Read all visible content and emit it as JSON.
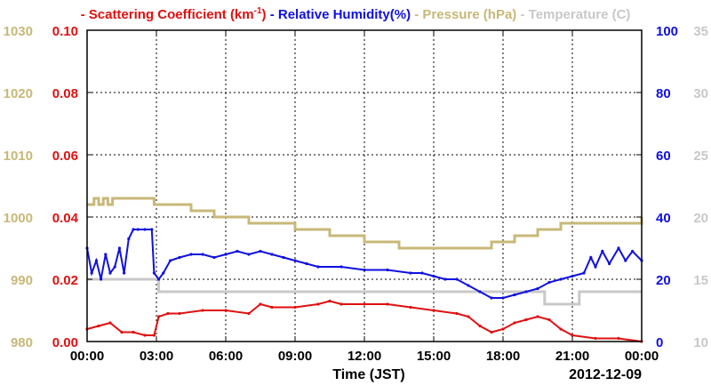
{
  "chart_data": {
    "type": "line",
    "date_label": "2012-12-09",
    "xlabel": "Time (JST)",
    "x_range_hours": [
      0,
      24
    ],
    "x_ticks": [
      "00:00",
      "03:00",
      "06:00",
      "09:00",
      "12:00",
      "15:00",
      "18:00",
      "21:00",
      "00:00"
    ],
    "grid": true,
    "legend_placement": "top",
    "axes": {
      "pressure": {
        "side": "left-outer",
        "range": [
          980,
          1030
        ],
        "ticks": [
          "980",
          "990",
          "1000",
          "1010",
          "1020",
          "1030"
        ],
        "color": "#c8b878"
      },
      "scattering": {
        "side": "left-inner",
        "range": [
          0,
          0.1
        ],
        "ticks": [
          "0.00",
          "0.02",
          "0.04",
          "0.06",
          "0.08",
          "0.10"
        ],
        "color": "#e01010"
      },
      "humidity": {
        "side": "right-inner",
        "range": [
          0,
          100
        ],
        "ticks": [
          "0",
          "20",
          "40",
          "60",
          "80",
          "100"
        ],
        "color": "#1010e0"
      },
      "temperature": {
        "side": "right-outer",
        "range": [
          10,
          35
        ],
        "ticks": [
          "10",
          "15",
          "20",
          "25",
          "30",
          "35"
        ],
        "color": "#c8c8c8"
      }
    },
    "legend": {
      "scattering": {
        "text": "Scattering Coefficient (km",
        "sup": "-1",
        "close": ")"
      },
      "humidity": "Relative Humidity(%)",
      "pressure": "Pressure (hPa)",
      "temperature": "Temperature (C)"
    },
    "series": [
      {
        "name": "Scattering Coefficient (km-1)",
        "key": "scattering",
        "axis": "scattering",
        "color": "#e01010",
        "step": false,
        "x": [
          0,
          0.5,
          1,
          1.5,
          2,
          2.5,
          2.9,
          3.1,
          3.5,
          4,
          5,
          6,
          7,
          7.5,
          8,
          9,
          10,
          10.5,
          11,
          12,
          13,
          14,
          15,
          16,
          16.5,
          17,
          17.5,
          18,
          18.5,
          19,
          19.5,
          20,
          20.5,
          21,
          22,
          23,
          24
        ],
        "y": [
          0.004,
          0.005,
          0.006,
          0.003,
          0.003,
          0.002,
          0.002,
          0.008,
          0.009,
          0.009,
          0.01,
          0.01,
          0.009,
          0.012,
          0.011,
          0.011,
          0.012,
          0.013,
          0.012,
          0.012,
          0.012,
          0.011,
          0.01,
          0.009,
          0.008,
          0.005,
          0.003,
          0.004,
          0.006,
          0.007,
          0.008,
          0.007,
          0.004,
          0.002,
          0.001,
          0.001,
          0.0
        ]
      },
      {
        "name": "Relative Humidity(%)",
        "key": "humidity",
        "axis": "humidity",
        "color": "#1010e0",
        "step": false,
        "x": [
          0,
          0.2,
          0.4,
          0.6,
          0.8,
          1,
          1.2,
          1.4,
          1.6,
          1.8,
          2,
          2.2,
          2.5,
          2.8,
          2.9,
          3.1,
          3.3,
          3.6,
          4,
          4.5,
          5,
          5.5,
          6,
          6.5,
          7,
          7.5,
          8,
          8.5,
          9,
          9.5,
          10,
          11,
          12,
          13,
          14,
          14.5,
          15,
          15.5,
          16,
          16.5,
          17,
          17.5,
          18,
          18.5,
          19,
          19.5,
          20,
          20.5,
          21,
          21.5,
          21.8,
          22,
          22.3,
          22.6,
          23,
          23.3,
          23.6,
          24
        ],
        "y": [
          30,
          22,
          26,
          20,
          28,
          22,
          24,
          30,
          22,
          33,
          36,
          36,
          36,
          36,
          22,
          20,
          22,
          26,
          27,
          28,
          28,
          27,
          28,
          29,
          28,
          29,
          28,
          27,
          26,
          25,
          24,
          24,
          23,
          23,
          22,
          22,
          21,
          20,
          20,
          18,
          16,
          14,
          14,
          15,
          16,
          17,
          19,
          20,
          21,
          22,
          27,
          24,
          29,
          25,
          30,
          26,
          29,
          26
        ]
      },
      {
        "name": "Pressure (hPa)",
        "key": "pressure",
        "axis": "pressure",
        "color": "#c8b878",
        "step": true,
        "x": [
          0,
          0.3,
          0.5,
          0.7,
          0.9,
          1.1,
          2.9,
          4.5,
          5.5,
          7,
          9,
          10.5,
          12,
          13.5,
          16,
          17.5,
          18.5,
          19.5,
          20.5,
          24
        ],
        "y": [
          1002,
          1003,
          1002,
          1003,
          1002,
          1003,
          1002,
          1001,
          1000,
          999,
          998,
          997,
          996,
          995,
          995,
          996,
          997,
          998,
          999,
          1000
        ]
      },
      {
        "name": "Temperature (C)",
        "key": "temperature",
        "axis": "temperature",
        "color": "#c8c8c8",
        "step": true,
        "x": [
          0,
          3.1,
          16.5,
          19.8,
          21.3,
          24
        ],
        "y": [
          15,
          14,
          14,
          13,
          14,
          14
        ]
      }
    ]
  }
}
